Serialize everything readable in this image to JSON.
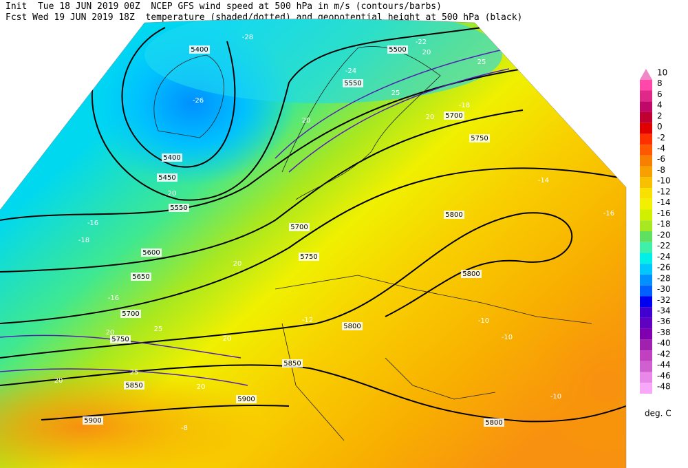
{
  "header": {
    "line1": "Init  Tue 18 JUN 2019 00Z  NCEP GFS wind speed at 500 hPa in m/s (contours/barbs)",
    "line2": "Fcst Wed 19 JUN 2019 18Z  temperature (shaded/dotted) and geopotential height at 500 hPa (black)"
  },
  "colorbar": {
    "ticks": [
      10,
      8,
      6,
      4,
      2,
      0,
      -2,
      -4,
      -6,
      -8,
      -10,
      -12,
      -14,
      -16,
      -18,
      -20,
      -22,
      -24,
      -26,
      -28,
      -30,
      -32,
      -34,
      -36,
      -38,
      -40,
      -42,
      -44,
      -46,
      -48
    ],
    "colors": [
      "#f088c8",
      "#ff48a8",
      "#e02888",
      "#c00868",
      "#c00030",
      "#e00000",
      "#ff3000",
      "#ff5800",
      "#f88000",
      "#f8a000",
      "#f8c000",
      "#f8e000",
      "#f0f000",
      "#d0f000",
      "#a8e820",
      "#60e060",
      "#40f0a8",
      "#00f0e8",
      "#00c8ff",
      "#0090ff",
      "#0060ff",
      "#0000f0",
      "#4000d0",
      "#6000c0",
      "#8000b0",
      "#a020b0",
      "#c040c0",
      "#d060d0",
      "#e888e8",
      "#f8a8f8"
    ],
    "unit": "deg. C"
  },
  "map": {
    "height_labels": [
      5400,
      5500,
      5550,
      5700,
      5750,
      5400,
      5450,
      5550,
      5600,
      5650,
      5700,
      5750,
      5800,
      5800,
      5750,
      5700,
      5800,
      5850,
      5850,
      5900,
      5900,
      5800
    ],
    "temperature_labels": [
      -26,
      -28,
      -24,
      -22,
      -18,
      -16,
      -18,
      -16,
      -14,
      -16,
      -12,
      -10,
      -10,
      -10,
      -8
    ],
    "wind_labels": [
      20,
      25,
      25,
      20,
      20,
      20,
      20,
      25,
      20,
      20,
      25,
      20,
      20
    ]
  }
}
